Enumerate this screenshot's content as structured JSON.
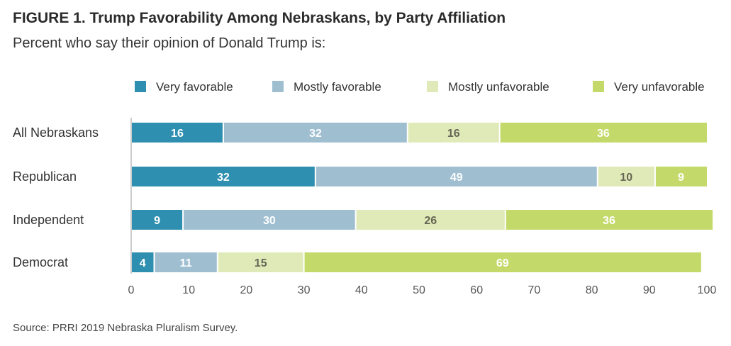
{
  "title": "FIGURE 1. Trump Favorability Among Nebraskans, by Party Affiliation",
  "subtitle": "Percent who say their opinion of Donald Trump is:",
  "source": "Source: PRRI 2019 Nebraska Pluralism Survey.",
  "chart_data": {
    "type": "bar",
    "orientation": "horizontal",
    "stacked": true,
    "categories": [
      "All Nebraskans",
      "Republican",
      "Independent",
      "Democrat"
    ],
    "series": [
      {
        "name": "Very favorable",
        "color": "#2f8fb0",
        "label_color": "#ffffff",
        "values": [
          16,
          32,
          9,
          4
        ]
      },
      {
        "name": "Mostly favorable",
        "color": "#9fbfd1",
        "label_color": "#ffffff",
        "values": [
          32,
          49,
          30,
          11
        ]
      },
      {
        "name": "Mostly unfavorable",
        "color": "#e0eab8",
        "label_color": "#666655",
        "values": [
          16,
          10,
          26,
          15
        ]
      },
      {
        "name": "Very unfavorable",
        "color": "#c3da6a",
        "label_color": "#ffffff",
        "values": [
          36,
          9,
          36,
          69
        ]
      }
    ],
    "xlim": [
      0,
      100
    ],
    "xticks": [
      "0",
      "10",
      "20",
      "30",
      "40",
      "50",
      "60",
      "70",
      "80",
      "90",
      "100"
    ],
    "xlabel": "",
    "ylabel": "",
    "legend_position": "top",
    "grid": false
  }
}
